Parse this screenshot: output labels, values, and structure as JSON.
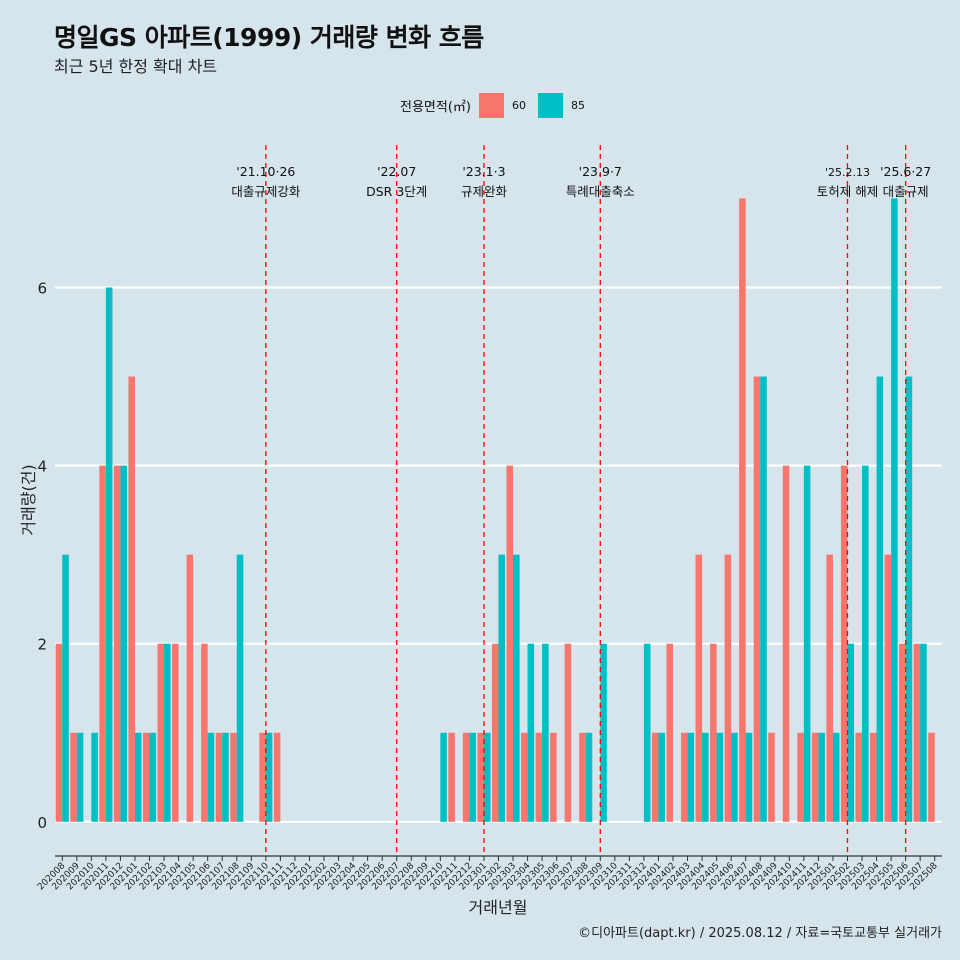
{
  "title": "명일GS 아파트(1999) 거래량 변화 흐름",
  "subtitle": "최근 5년 한정 확대 차트",
  "legend": {
    "title": "전용면적(㎡)",
    "items": [
      {
        "label": "60",
        "color": "#f8766d"
      },
      {
        "label": "85",
        "color": "#00bfc4"
      }
    ]
  },
  "caption": "©디아파트(dapt.kr) / 2025.08.12 / 자료=국토교통부 실거래가",
  "chart_data": {
    "type": "bar",
    "xlabel": "거래년월",
    "ylabel": "거래량(건)",
    "ylim": [
      -0.35,
      7.6
    ],
    "yticks": [
      0,
      2,
      4,
      6
    ],
    "categories": [
      "202008",
      "202009",
      "202010",
      "202011",
      "202012",
      "202101",
      "202102",
      "202103",
      "202104",
      "202105",
      "202106",
      "202107",
      "202108",
      "202109",
      "202110",
      "202111",
      "202112",
      "202201",
      "202202",
      "202203",
      "202204",
      "202205",
      "202206",
      "202207",
      "202208",
      "202209",
      "202210",
      "202211",
      "202212",
      "202301",
      "202302",
      "202303",
      "202304",
      "202305",
      "202306",
      "202307",
      "202308",
      "202309",
      "202310",
      "202311",
      "202312",
      "202401",
      "202402",
      "202403",
      "202404",
      "202405",
      "202406",
      "202407",
      "202408",
      "202409",
      "202410",
      "202411",
      "202412",
      "202501",
      "202502",
      "202503",
      "202504",
      "202505",
      "202506",
      "202507",
      "202508"
    ],
    "series": [
      {
        "name": "60",
        "color": "#f8766d",
        "values": [
          2,
          1,
          0,
          4,
          4,
          5,
          1,
          2,
          2,
          3,
          2,
          1,
          1,
          0,
          1,
          1,
          0,
          0,
          0,
          0,
          0,
          0,
          0,
          0,
          0,
          0,
          0,
          1,
          1,
          1,
          2,
          4,
          1,
          1,
          1,
          2,
          1,
          0,
          0,
          0,
          0,
          1,
          2,
          1,
          3,
          2,
          3,
          7,
          5,
          1,
          4,
          1,
          1,
          3,
          4,
          1,
          1,
          3,
          2,
          2,
          1
        ]
      },
      {
        "name": "85",
        "color": "#00bfc4",
        "values": [
          3,
          1,
          1,
          6,
          4,
          1,
          1,
          2,
          0,
          0,
          1,
          1,
          3,
          0,
          1,
          0,
          0,
          0,
          0,
          0,
          0,
          0,
          0,
          0,
          0,
          0,
          1,
          0,
          1,
          1,
          3,
          3,
          2,
          2,
          0,
          0,
          1,
          2,
          0,
          0,
          2,
          1,
          0,
          1,
          1,
          1,
          1,
          1,
          5,
          0,
          0,
          4,
          1,
          1,
          2,
          4,
          5,
          7,
          5,
          2,
          0
        ]
      }
    ],
    "annotations": [
      {
        "x": "202110",
        "date": "'21.10·26",
        "label": "대출규제강화"
      },
      {
        "x": "202207",
        "date": "'22.07",
        "label": "DSR 3단계"
      },
      {
        "x": "202301",
        "date": "'23.1·3",
        "label": "규제완화"
      },
      {
        "x": "202309",
        "date": "'23.9·7",
        "label": "특례대출축소"
      },
      {
        "x": "202502",
        "date": "'25.2.13",
        "label": "토허제 해제"
      },
      {
        "x": "202506",
        "date": "'25.6·27",
        "label": "대출규제"
      }
    ]
  }
}
